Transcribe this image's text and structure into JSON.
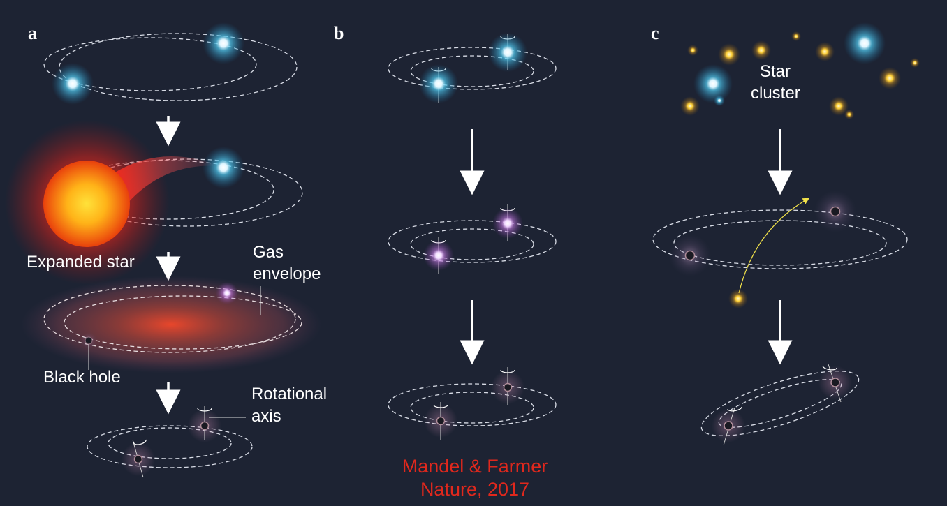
{
  "panels": {
    "a": {
      "letter": "a"
    },
    "b": {
      "letter": "b"
    },
    "c": {
      "letter": "c"
    }
  },
  "labels": {
    "expanded_star": "Expanded star",
    "gas_envelope_line1": "Gas",
    "gas_envelope_line2": "envelope",
    "black_hole": "Black hole",
    "rotational_axis_line1": "Rotational",
    "rotational_axis_line2": "axis",
    "star_cluster_line1": "Star",
    "star_cluster_line2": "cluster"
  },
  "credit": {
    "line1": "Mandel & Farmer",
    "line2": "Nature, 2017"
  },
  "colors": {
    "background": "#1d2333",
    "blue_star": "#4fc3e8",
    "purple_star": "#d9a3f0",
    "red_giant": "#ff3b1f",
    "yellow_star": "#ffd23a",
    "credit_text": "#e0281d",
    "capture_arrow": "#f2e24a"
  }
}
